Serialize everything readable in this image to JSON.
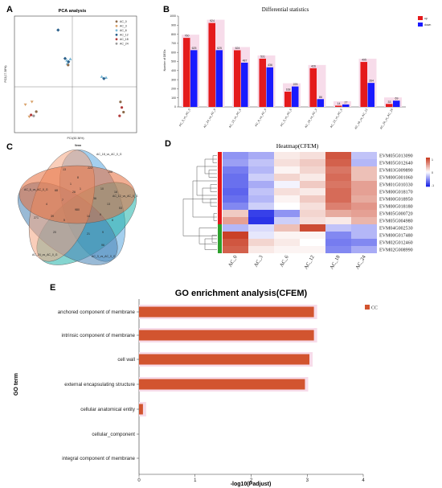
{
  "panels": {
    "a": {
      "letter": "A"
    },
    "b": {
      "letter": "B"
    },
    "c": {
      "letter": "C"
    },
    "d": {
      "letter": "D"
    },
    "e": {
      "letter": "E"
    }
  },
  "chart_data": [
    {
      "id": "pca",
      "type": "scatter",
      "title": "PCA analysis",
      "xlabel": "PC1(52.36%)",
      "ylabel": "PC2(17.38%)",
      "legend_position": "right",
      "legend": [
        "AC_0",
        "AC_3",
        "AC_6",
        "AC_12",
        "AC_18",
        "AC_24"
      ],
      "series_colors": [
        "#8c6a4a",
        "#d9a26a",
        "#7ab8d6",
        "#2a5f8a",
        "#b23b3b",
        "#999999"
      ],
      "points": [
        {
          "group": 3,
          "x": -4,
          "y": 12
        },
        {
          "group": 2,
          "x": -2,
          "y": 5.5
        },
        {
          "group": 2,
          "x": -1.2,
          "y": 5.8
        },
        {
          "group": 3,
          "x": -2.4,
          "y": 5.9
        },
        {
          "group": 3,
          "x": -1.6,
          "y": 5.2
        },
        {
          "group": 2,
          "x": -1.9,
          "y": 4.8
        },
        {
          "group": 0,
          "x": -1.7,
          "y": 4.5
        },
        {
          "group": 2,
          "x": 6,
          "y": 2.0
        },
        {
          "group": 2,
          "x": 7,
          "y": 1.8
        },
        {
          "group": 3,
          "x": 6.5,
          "y": 1.6
        },
        {
          "group": 1,
          "x": -11.5,
          "y": -4.0
        },
        {
          "group": 1,
          "x": -10,
          "y": -3.4
        },
        {
          "group": 0,
          "x": -9,
          "y": -5.5
        },
        {
          "group": 1,
          "x": -10.6,
          "y": -6.6
        },
        {
          "group": 5,
          "x": -9.6,
          "y": -6.4
        },
        {
          "group": 4,
          "x": -10.2,
          "y": -6.2
        },
        {
          "group": 0,
          "x": 10.3,
          "y": -3.4
        },
        {
          "group": 4,
          "x": 10.6,
          "y": -4.6
        },
        {
          "group": 0,
          "x": 11.0,
          "y": -5.6
        },
        {
          "group": 4,
          "x": 10.1,
          "y": -6.4
        }
      ]
    },
    {
      "id": "degs",
      "type": "bar",
      "title": "Differential statistics",
      "ylabel": "Number of DEGs",
      "ylim": [
        0,
        1000
      ],
      "yticks": [
        0,
        100,
        200,
        300,
        400,
        500,
        600,
        700,
        800,
        900,
        1000
      ],
      "legend_position": "top-right",
      "categories": [
        "AC_3_vs_AC_0",
        "AC_24_vs_AC_0",
        "AC_12_vs_AC_6",
        "AC_6_vs_AC_0",
        "AC_3_vs_AC_6",
        "AC_18_vs_AC_3",
        "AC_12_vs_AC_6",
        "AC_18_vs_AC_12",
        "AC_24_vs_AC_18"
      ],
      "series": [
        {
          "name": "up",
          "color": "#e41a1c",
          "values": [
            760,
            924,
            624,
            531,
            168,
            426,
            14,
            495,
            33
          ]
        },
        {
          "name": "down",
          "color": "#1a1aff",
          "values": [
            625,
            625,
            487,
            436,
            225,
            86,
            27,
            264,
            69
          ]
        }
      ]
    },
    {
      "id": "venn",
      "type": "diagram",
      "title": "Venn",
      "sets": [
        "AC_18_vs_AC_0_G",
        "AC_12_vs_AC_0_G",
        "AC_3_vs_AC_0_G",
        "AC_24_vs_AC_0_G",
        "AC_6_vs_AC_0_G"
      ],
      "set_colors": [
        "#5aa8e0",
        "#20b2aa",
        "#4682b4",
        "#f4a582",
        "#e66b3a"
      ],
      "counts": [
        "222",
        "156",
        "13",
        "10",
        "8",
        "16",
        "68",
        "53",
        "4",
        "36",
        "13",
        "7",
        "26",
        "39",
        "8",
        "1",
        "1",
        "6",
        "20",
        "21",
        "9",
        "980",
        "14",
        "5",
        "96",
        "271"
      ]
    },
    {
      "id": "heatmap",
      "type": "heatmap",
      "title": "Heatmap(CFEM)",
      "columns": [
        "AC_0",
        "AC_3",
        "AC_6",
        "AC_12",
        "AC_18",
        "AC_24"
      ],
      "rows": [
        "EVM05G013090",
        "EVM05G012640",
        "EVM03G009890",
        "EVM00G001060",
        "EVM01G010330",
        "EVM00G018170",
        "EVM00G018950",
        "EVM00G018180",
        "EVM05G000720",
        "EVM05G004980",
        "EVM04G002530",
        "EVM00G017480",
        "EVM02G012460",
        "EVM02G008990"
      ],
      "legend_ticks": [
        "1",
        "0",
        "-1"
      ],
      "row_groups": [
        {
          "color": "#e41a1c",
          "count": 10
        },
        {
          "color": "#2ca02c",
          "count": 4
        }
      ],
      "values": [
        [
          -0.9,
          -0.7,
          0.2,
          0.3,
          1.6,
          -0.5
        ],
        [
          -0.8,
          -0.5,
          0.3,
          0.5,
          1.5,
          -0.6
        ],
        [
          -1.1,
          -0.6,
          0.1,
          0.4,
          1.3,
          0.6
        ],
        [
          -1.2,
          -0.4,
          0.4,
          0.2,
          1.4,
          0.6
        ],
        [
          -1.2,
          -0.7,
          -0.1,
          0.5,
          1.3,
          0.9
        ],
        [
          -1.3,
          -0.5,
          0.3,
          0.2,
          1.4,
          0.9
        ],
        [
          -1.2,
          -0.6,
          0.1,
          0.5,
          1.4,
          0.8
        ],
        [
          -1.0,
          -0.4,
          0.0,
          0.3,
          1.2,
          1.0
        ],
        [
          0.5,
          -1.6,
          -0.9,
          0.4,
          0.8,
          0.9
        ],
        [
          0.9,
          -1.7,
          -0.4,
          0.3,
          0.2,
          0.7
        ],
        [
          -0.6,
          -0.3,
          0.6,
          1.7,
          -0.5,
          -0.6
        ],
        [
          1.8,
          -0.2,
          0.1,
          0.1,
          -1.0,
          -0.6
        ],
        [
          1.6,
          0.4,
          0.2,
          0.0,
          -1.1,
          -1.0
        ],
        [
          1.5,
          0.2,
          0.1,
          0.1,
          -1.0,
          -0.7
        ]
      ]
    },
    {
      "id": "go",
      "type": "bar",
      "orientation": "horizontal",
      "title": "GO enrichment analysis(CFEM)",
      "xlabel": "-log10(Padjust)",
      "ylabel": "GO term",
      "xlim": [
        0,
        4
      ],
      "xticks": [
        0,
        1,
        2,
        3,
        4
      ],
      "legend_position": "top-right",
      "categories": [
        "anchored component of membrane",
        "intrinsic component of membrane",
        "cell wall",
        "external encapsulating structure",
        "cellular anatomical entity",
        "cellular_component",
        "integral component of membrane"
      ],
      "series": [
        {
          "name": "CC",
          "color": "#d2542f",
          "values": [
            3.12,
            3.12,
            3.04,
            2.96,
            0.07,
            0,
            0
          ]
        }
      ]
    }
  ]
}
